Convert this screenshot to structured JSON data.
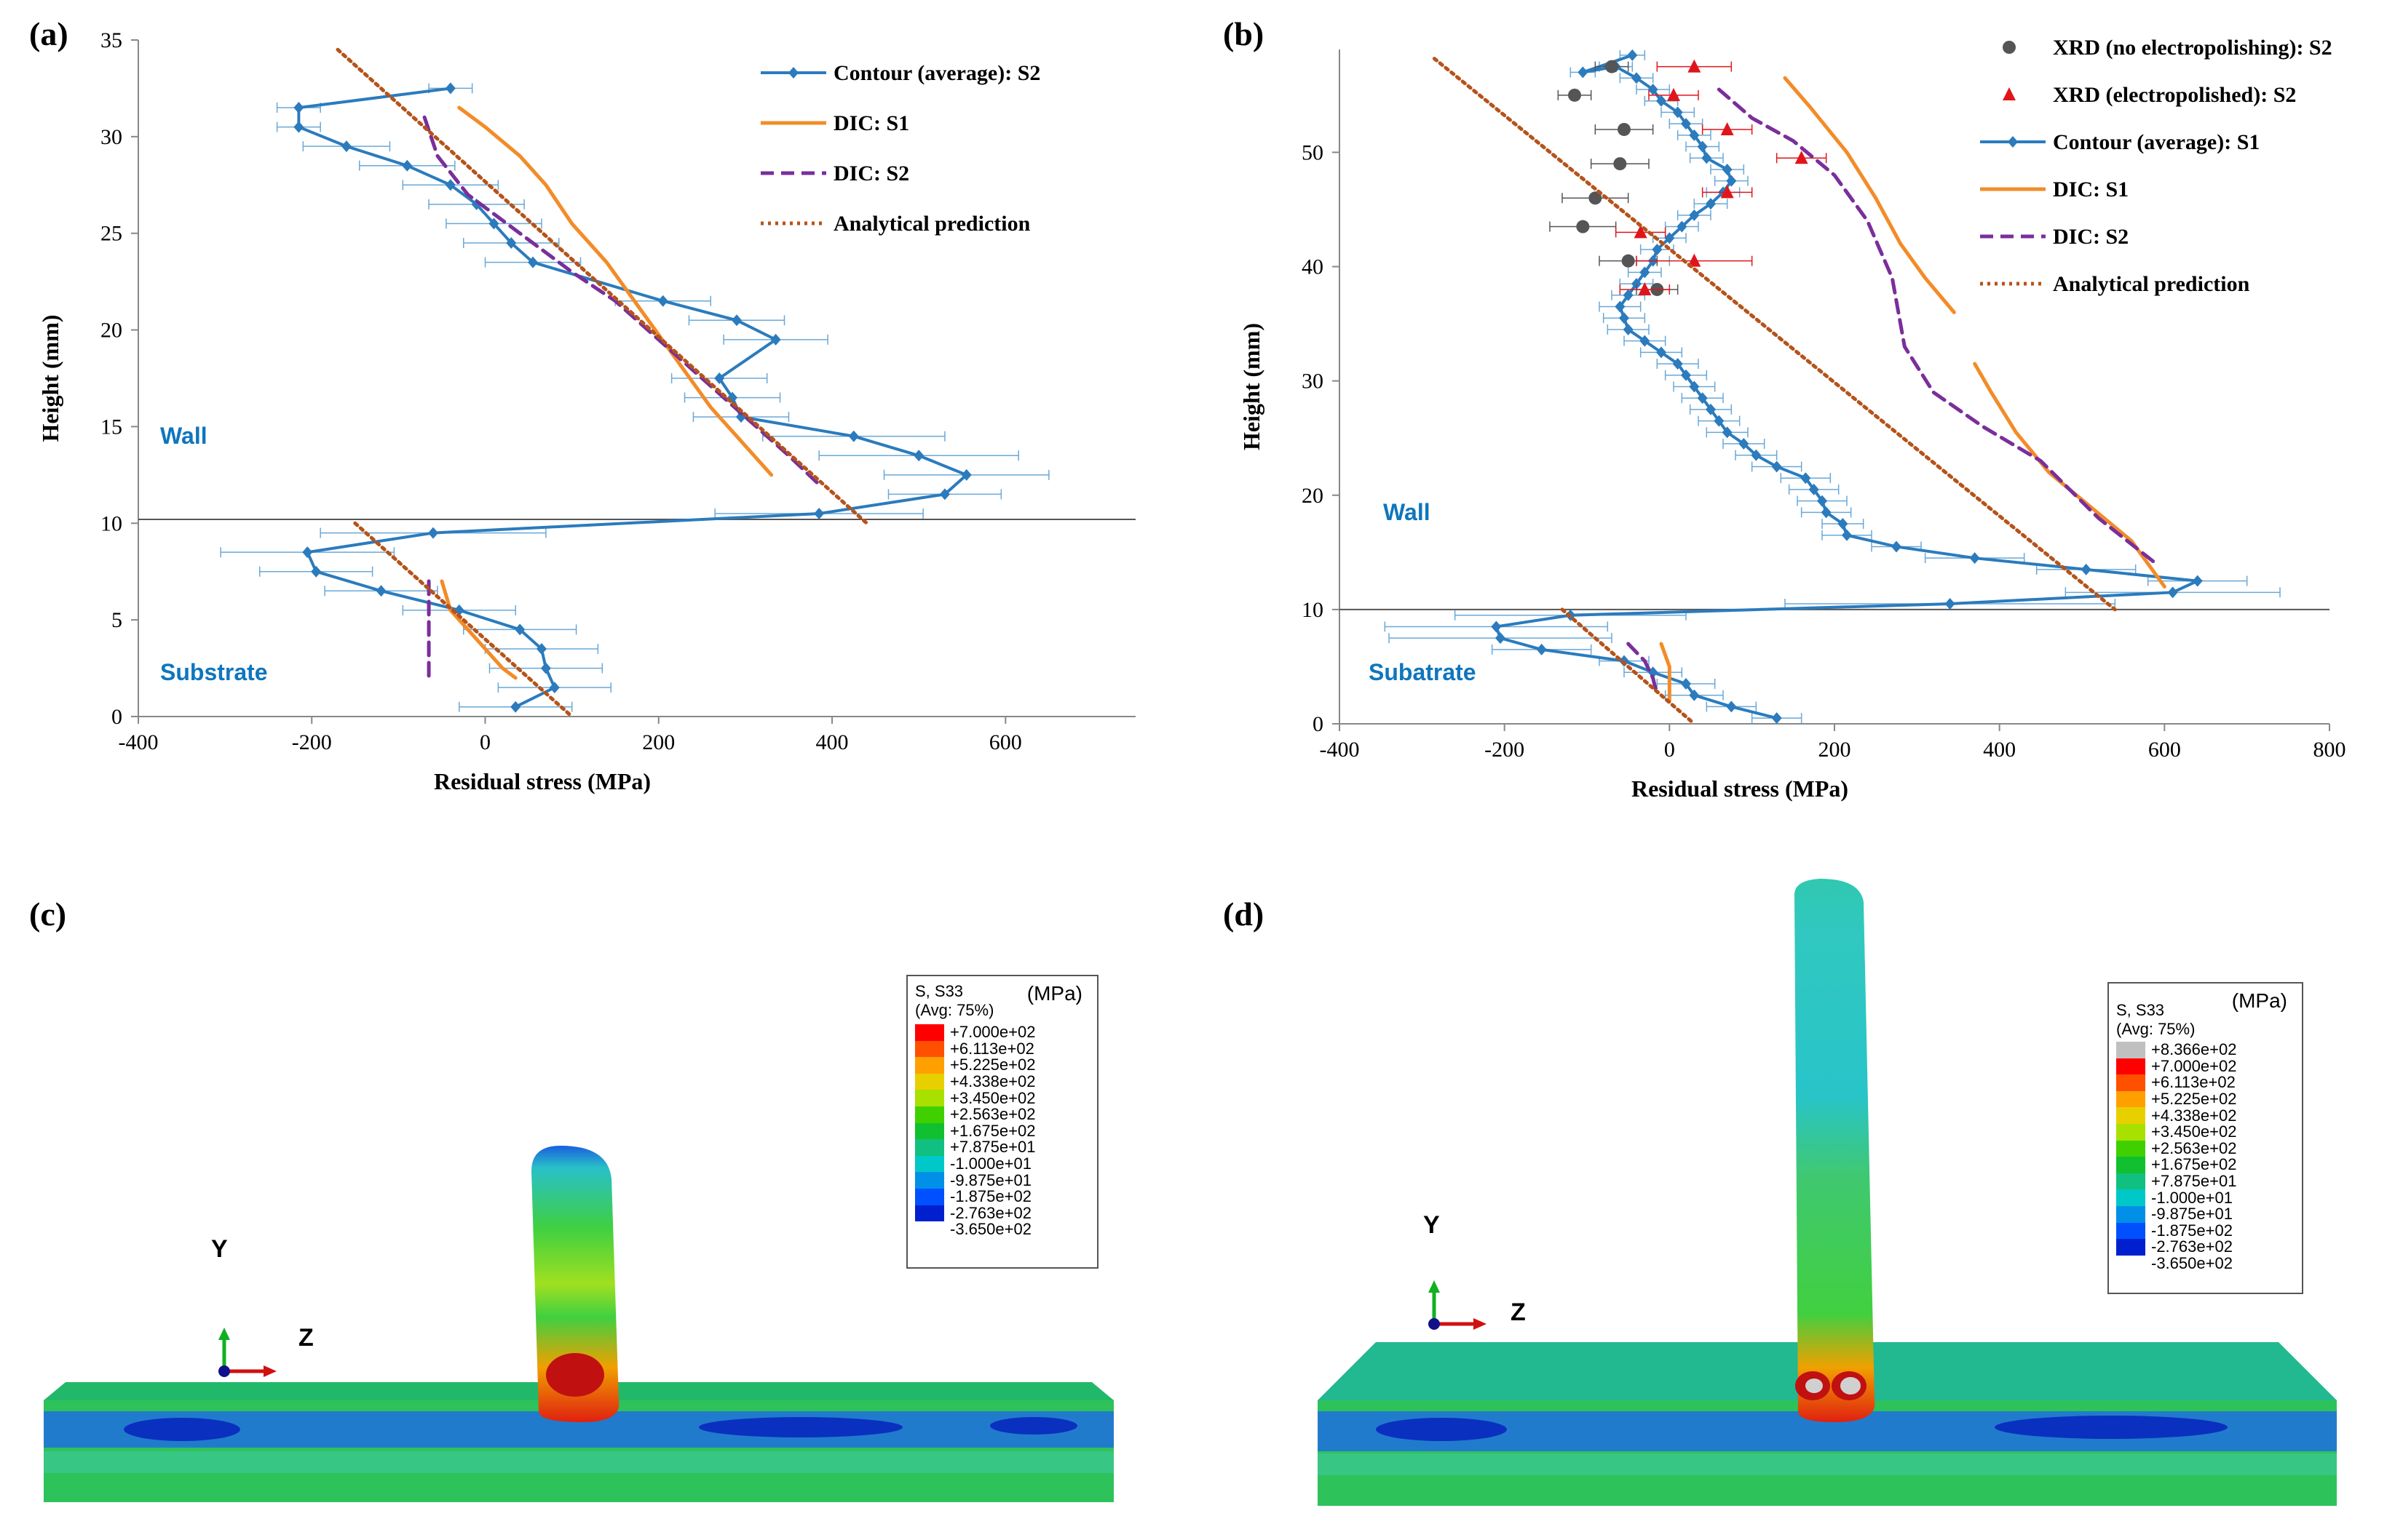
{
  "panels": {
    "a": "(a)",
    "b": "(b)",
    "c": "(c)",
    "d": "(d)"
  },
  "colors": {
    "contour": "#2b7bbd",
    "dic_s1": "#f28c28",
    "dic_s2": "#7a2e9b",
    "analytical": "#b5531a",
    "xrd_no": "#555555",
    "xrd_ep": "#e0151b"
  },
  "chart_data": [
    {
      "id": "a",
      "type": "line",
      "xlabel": "Residual stress (MPa)",
      "ylabel": "Height (mm)",
      "xlim": [
        -400,
        750
      ],
      "ylim": [
        0,
        35
      ],
      "xticks": [
        -400,
        -200,
        0,
        200,
        400,
        600
      ],
      "yticks": [
        0,
        5,
        10,
        15,
        20,
        25,
        30,
        35
      ],
      "interface_height": 10.2,
      "region_labels": [
        "Wall",
        "Substrate"
      ],
      "legend": [
        "Contour (average): S2",
        "DIC: S1",
        "DIC: S2",
        "Analytical prediction"
      ],
      "series": [
        {
          "name": "Contour (average): S2",
          "style": "contour",
          "markers": true,
          "x": [
            35,
            80,
            70,
            65,
            40,
            -30,
            -120,
            -195,
            -205,
            -60,
            385,
            530,
            555,
            500,
            425,
            295,
            285,
            270,
            335,
            290,
            205,
            55,
            30,
            10,
            -10,
            -40,
            -90,
            -160,
            -215,
            -215,
            -40
          ],
          "y": [
            0.5,
            1.5,
            2.5,
            3.5,
            4.5,
            5.5,
            6.5,
            7.5,
            8.5,
            9.5,
            10.5,
            11.5,
            12.5,
            13.5,
            14.5,
            15.5,
            16.5,
            17.5,
            19.5,
            20.5,
            21.5,
            23.5,
            24.5,
            25.5,
            26.5,
            27.5,
            28.5,
            29.5,
            30.5,
            31.5,
            32.5
          ],
          "err": [
            65,
            65,
            65,
            65,
            65,
            65,
            65,
            65,
            100,
            130,
            120,
            65,
            95,
            115,
            105,
            55,
            55,
            55,
            60,
            55,
            55,
            55,
            55,
            55,
            55,
            55,
            55,
            50,
            25,
            25,
            25
          ]
        },
        {
          "name": "DIC: S1",
          "style": "dic1",
          "segments": [
            {
              "x": [
                -50,
                -40,
                -20,
                0,
                20,
                35
              ],
              "y": [
                7,
                5.5,
                4.5,
                3.5,
                2.5,
                2
              ]
            },
            {
              "x": [
                -30,
                0,
                40,
                70,
                100,
                140,
                180,
                220,
                260,
                300,
                330
              ],
              "y": [
                31.5,
                30.5,
                29,
                27.5,
                25.5,
                23.5,
                21,
                18.5,
                16,
                14,
                12.5
              ]
            }
          ]
        },
        {
          "name": "DIC: S2",
          "style": "dic2",
          "segments": [
            {
              "x": [
                -65,
                -65,
                -65
              ],
              "y": [
                7,
                4,
                2
              ]
            },
            {
              "x": [
                -70,
                -55,
                -20,
                40,
                100,
                150,
                200,
                250,
                300,
                350,
                385
              ],
              "y": [
                31,
                29,
                27,
                25,
                23,
                21.5,
                19.5,
                17.5,
                15.5,
                13.5,
                12
              ]
            }
          ]
        },
        {
          "name": "Analytical prediction",
          "style": "analytical",
          "segments": [
            {
              "x": [
                -170,
                440
              ],
              "y": [
                34.5,
                10
              ]
            },
            {
              "x": [
                -150,
                100
              ],
              "y": [
                10,
                0
              ]
            }
          ]
        }
      ]
    },
    {
      "id": "b",
      "type": "line",
      "xlabel": "Residual stress (MPa)",
      "ylabel": "Height (mm)",
      "xlim": [
        -400,
        800
      ],
      "ylim": [
        0,
        59
      ],
      "xticks": [
        -400,
        -200,
        0,
        200,
        400,
        600,
        800
      ],
      "yticks": [
        0,
        10,
        20,
        30,
        40,
        50
      ],
      "interface_height": 10,
      "region_labels": [
        "Wall",
        "Subatrate"
      ],
      "legend": [
        "XRD (no electropolishing): S2",
        "XRD (electropolished): S2",
        "Contour (average): S1",
        "DIC: S1",
        "DIC: S2",
        "Analytical prediction"
      ],
      "series": [
        {
          "name": "Contour (average): S1",
          "style": "contour",
          "markers": true,
          "x": [
            130,
            75,
            30,
            20,
            -20,
            -55,
            -155,
            -205,
            -210,
            -120,
            340,
            610,
            640,
            505,
            370,
            275,
            215,
            210,
            190,
            185,
            175,
            165,
            130,
            105,
            90,
            70,
            60,
            50,
            40,
            30,
            20,
            10,
            -10,
            -30,
            -50,
            -55,
            -60,
            -50,
            -40,
            -30,
            -20,
            -15,
            0,
            15,
            30,
            50,
            65,
            75,
            70,
            45,
            40,
            30,
            20,
            10,
            -10,
            -20,
            -40,
            -65,
            -105,
            -45
          ],
          "y": [
            0.5,
            1.5,
            2.5,
            3.5,
            4.5,
            5.5,
            6.5,
            7.5,
            8.5,
            9.5,
            10.5,
            11.5,
            12.5,
            13.5,
            14.5,
            15.5,
            16.5,
            17.5,
            18.5,
            19.5,
            20.5,
            21.5,
            22.5,
            23.5,
            24.5,
            25.5,
            26.5,
            27.5,
            28.5,
            29.5,
            30.5,
            31.5,
            32.5,
            33.5,
            34.5,
            35.5,
            36.5,
            37.5,
            38.5,
            39.5,
            40.5,
            41.5,
            42.5,
            43.5,
            44.5,
            45.5,
            46.5,
            47.5,
            48.5,
            49.5,
            50.5,
            51.5,
            52.5,
            53.5,
            54.5,
            55.5,
            56.5,
            57.5,
            57.0,
            58.5
          ],
          "err": [
            30,
            30,
            35,
            35,
            35,
            30,
            60,
            135,
            135,
            140,
            200,
            130,
            60,
            60,
            60,
            30,
            30,
            25,
            30,
            30,
            30,
            30,
            30,
            25,
            25,
            25,
            25,
            25,
            25,
            25,
            25,
            25,
            25,
            25,
            25,
            25,
            25,
            20,
            20,
            20,
            20,
            20,
            20,
            20,
            20,
            20,
            20,
            20,
            20,
            20,
            20,
            20,
            20,
            20,
            20,
            20,
            20,
            20,
            15,
            15
          ]
        },
        {
          "name": "XRD (no electropolishing): S2",
          "style": "xrd_no",
          "markers": true,
          "x": [
            -15,
            -50,
            -105,
            -90,
            -60,
            -55,
            -115,
            -70
          ],
          "y": [
            38,
            40.5,
            43.5,
            46,
            49,
            52,
            55,
            57.5
          ],
          "err": [
            25,
            35,
            40,
            40,
            35,
            35,
            20,
            20
          ]
        },
        {
          "name": "XRD (electropolished): S2",
          "style": "xrd_ep",
          "markers": true,
          "x": [
            -30,
            30,
            -35,
            70,
            160,
            70,
            5,
            30
          ],
          "y": [
            38,
            40.5,
            43,
            46.5,
            49.5,
            52,
            55,
            57.5
          ],
          "err": [
            30,
            70,
            30,
            30,
            30,
            30,
            30,
            45
          ]
        },
        {
          "name": "DIC: S1",
          "style": "dic1",
          "segments": [
            {
              "x": [
                -10,
                0,
                0
              ],
              "y": [
                7,
                5,
                2
              ]
            },
            {
              "x": [
                370,
                390,
                420,
                460,
                510,
                560,
                600
              ],
              "y": [
                31.5,
                29,
                25.5,
                22,
                19,
                16,
                12
              ]
            },
            {
              "x": [
                140,
                170,
                215,
                250,
                280,
                310,
                345
              ],
              "y": [
                56.5,
                54,
                50,
                46,
                42,
                39,
                36
              ]
            }
          ]
        },
        {
          "name": "DIC: S2",
          "style": "dic2",
          "segments": [
            {
              "x": [
                -50,
                -30,
                -20,
                -15
              ],
              "y": [
                7,
                5.5,
                4,
                2.5
              ]
            },
            {
              "x": [
                60,
                100,
                150,
                200,
                240,
                270,
                285,
                320,
                380,
                450,
                520,
                590
              ],
              "y": [
                55.5,
                53,
                51,
                48,
                44,
                39,
                33,
                29,
                26,
                23,
                18,
                14
              ]
            }
          ]
        },
        {
          "name": "Analytical prediction",
          "style": "analytical",
          "segments": [
            {
              "x": [
                -285,
                540
              ],
              "y": [
                58.2,
                10
              ]
            },
            {
              "x": [
                -130,
                30
              ],
              "y": [
                10,
                0
              ]
            }
          ]
        }
      ]
    }
  ],
  "fea_c": {
    "title_line1": "S, S33",
    "unit": "(MPa)",
    "title_line2": "(Avg: 75%)",
    "levels": [
      "+7.000e+02",
      "+6.113e+02",
      "+5.225e+02",
      "+4.338e+02",
      "+3.450e+02",
      "+2.563e+02",
      "+1.675e+02",
      "+7.875e+01",
      "-1.000e+01",
      "-9.875e+01",
      "-1.875e+02",
      "-2.763e+02",
      "-3.650e+02"
    ],
    "swatches": [
      "#ff0000",
      "#ff5000",
      "#ffa000",
      "#e8d000",
      "#a8e000",
      "#40d000",
      "#10c030",
      "#10c080",
      "#00c8c8",
      "#0090e8",
      "#0050ff",
      "#0020d0"
    ],
    "axis_y": "Y",
    "axis_z": "Z"
  },
  "fea_d": {
    "title_line1": "S, S33",
    "unit": "(MPa)",
    "title_line2": "(Avg: 75%)",
    "levels": [
      "+8.366e+02",
      "+7.000e+02",
      "+6.113e+02",
      "+5.225e+02",
      "+4.338e+02",
      "+3.450e+02",
      "+2.563e+02",
      "+1.675e+02",
      "+7.875e+01",
      "-1.000e+01",
      "-9.875e+01",
      "-1.875e+02",
      "-2.763e+02",
      "-3.650e+02"
    ],
    "swatches": [
      "#c0c0c0",
      "#ff0000",
      "#ff5000",
      "#ffa000",
      "#e8d000",
      "#a8e000",
      "#40d000",
      "#10c030",
      "#10c080",
      "#00c8c8",
      "#0090e8",
      "#0050ff",
      "#0020d0"
    ],
    "axis_y": "Y",
    "axis_z": "Z"
  }
}
